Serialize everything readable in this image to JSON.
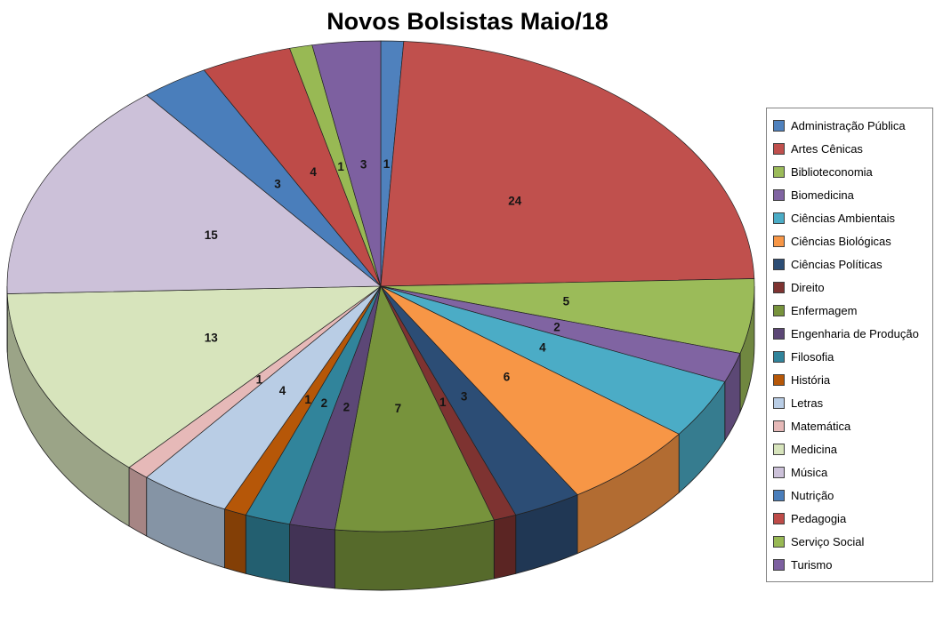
{
  "chart": {
    "title": "Novos Bolsistas Maio/18"
  },
  "chart_data": {
    "type": "pie",
    "style": "3d",
    "title": "Novos Bolsistas Maio/18",
    "direction": "clockwise",
    "start_angle_deg": 0,
    "legend_position": "right",
    "data_labels": "values",
    "total": 102,
    "categories": [
      "Administração Pública",
      "Artes Cênicas",
      "Biblioteconomia",
      "Biomedicina",
      "Ciências Ambientais",
      "Ciências Biológicas",
      "Ciências Políticas",
      "Direito",
      "Enfermagem",
      "Engenharia de Produção",
      "Filosofia",
      "História",
      "Letras",
      "Matemática",
      "Medicina",
      "Música",
      "Nutrição",
      "Pedagogia",
      "Serviço Social",
      "Turismo"
    ],
    "values": [
      1,
      24,
      5,
      2,
      4,
      6,
      3,
      1,
      7,
      2,
      2,
      1,
      4,
      1,
      13,
      15,
      3,
      4,
      1,
      3
    ],
    "colors": [
      "#4F81BD",
      "#C0504D",
      "#9BBB59",
      "#8064A2",
      "#4BACC6",
      "#F79646",
      "#2C4D75",
      "#7E3331",
      "#77933C",
      "#5C4776",
      "#31849B",
      "#B65708",
      "#B9CDE5",
      "#E6B9B8",
      "#D7E4BC",
      "#CCC1D9",
      "#4A7EBB",
      "#BE4B48",
      "#98B954",
      "#7D60A0"
    ]
  }
}
